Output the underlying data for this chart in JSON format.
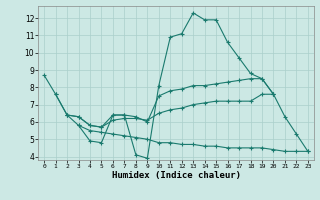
{
  "xlabel": "Humidex (Indice chaleur)",
  "ylabel": "",
  "bg_color": "#cce8e4",
  "line_color": "#1a7a6e",
  "grid_color": "#aacfcb",
  "xlim": [
    -0.5,
    23.5
  ],
  "ylim": [
    3.8,
    12.7
  ],
  "yticks": [
    4,
    5,
    6,
    7,
    8,
    9,
    10,
    11,
    12
  ],
  "xticks": [
    0,
    1,
    2,
    3,
    4,
    5,
    6,
    7,
    8,
    9,
    10,
    11,
    12,
    13,
    14,
    15,
    16,
    17,
    18,
    19,
    20,
    21,
    22,
    23
  ],
  "line1_x": [
    0,
    1,
    2,
    3,
    4,
    5,
    6,
    7,
    8,
    9,
    10,
    11,
    12,
    13,
    14,
    15,
    16,
    17,
    18,
    19,
    20,
    21,
    22,
    23
  ],
  "line1_y": [
    8.7,
    7.6,
    6.4,
    5.8,
    4.9,
    4.8,
    6.4,
    6.4,
    4.1,
    3.9,
    8.1,
    10.9,
    11.1,
    12.3,
    11.9,
    11.9,
    10.6,
    9.7,
    8.8,
    8.5,
    7.6,
    6.3,
    5.3,
    4.3
  ],
  "line2_x": [
    1,
    2,
    3,
    4,
    5,
    6,
    7,
    8,
    9,
    10,
    11,
    12,
    13,
    14,
    15,
    16,
    17,
    18,
    19,
    20
  ],
  "line2_y": [
    7.6,
    6.4,
    6.3,
    5.8,
    5.7,
    6.4,
    6.4,
    6.3,
    6.0,
    7.5,
    7.8,
    7.9,
    8.1,
    8.1,
    8.2,
    8.3,
    8.4,
    8.5,
    8.5,
    7.6
  ],
  "line3_x": [
    2,
    3,
    4,
    5,
    6,
    7,
    8,
    9,
    10,
    11,
    12,
    13,
    14,
    15,
    16,
    17,
    18,
    19,
    20
  ],
  "line3_y": [
    6.4,
    6.3,
    5.8,
    5.7,
    6.1,
    6.2,
    6.2,
    6.1,
    6.5,
    6.7,
    6.8,
    7.0,
    7.1,
    7.2,
    7.2,
    7.2,
    7.2,
    7.6,
    7.6
  ],
  "line4_x": [
    3,
    4,
    5,
    6,
    7,
    8,
    9,
    10,
    11,
    12,
    13,
    14,
    15,
    16,
    17,
    18,
    19,
    20,
    21,
    22,
    23
  ],
  "line4_y": [
    5.8,
    5.5,
    5.4,
    5.3,
    5.2,
    5.1,
    5.0,
    4.8,
    4.8,
    4.7,
    4.7,
    4.6,
    4.6,
    4.5,
    4.5,
    4.5,
    4.5,
    4.4,
    4.3,
    4.3,
    4.3
  ]
}
